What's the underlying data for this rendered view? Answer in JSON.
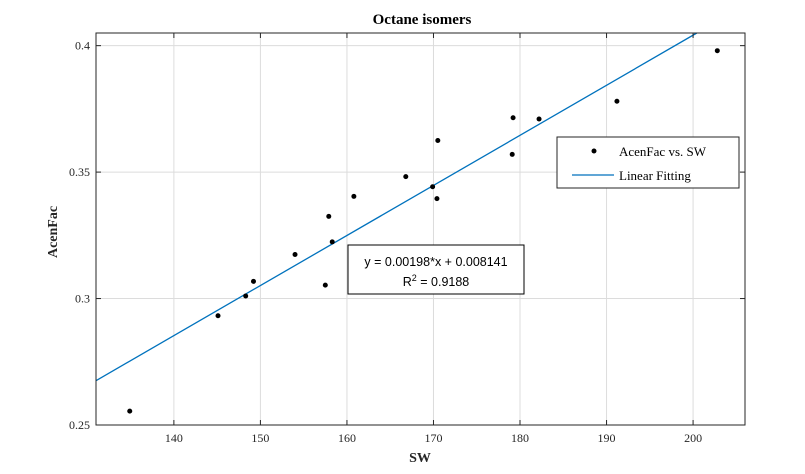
{
  "chart_data": {
    "type": "scatter",
    "title": "Octane isomers",
    "xlabel": "SW",
    "ylabel": "AcenFac",
    "xlim": [
      131,
      206
    ],
    "ylim": [
      0.25,
      0.405
    ],
    "x_ticks": [
      140,
      150,
      160,
      170,
      180,
      190,
      200
    ],
    "y_ticks": [
      0.25,
      0.3,
      0.35,
      0.4
    ],
    "x_tick_labels": [
      "140",
      "150",
      "160",
      "170",
      "180",
      "190",
      "200"
    ],
    "y_tick_labels": [
      "0.25",
      "0.3",
      "0.35",
      "0.4"
    ],
    "grid": true,
    "legend_position": "right",
    "series": [
      {
        "name": "AcenFac vs. SW",
        "kind": "points",
        "color": "#000000",
        "points": [
          {
            "x": 134.9,
            "y": 0.2555
          },
          {
            "x": 145.1,
            "y": 0.2932
          },
          {
            "x": 148.3,
            "y": 0.301
          },
          {
            "x": 149.2,
            "y": 0.3068
          },
          {
            "x": 154.0,
            "y": 0.3174
          },
          {
            "x": 157.5,
            "y": 0.3053
          },
          {
            "x": 157.9,
            "y": 0.3325
          },
          {
            "x": 158.3,
            "y": 0.3224
          },
          {
            "x": 160.8,
            "y": 0.3404
          },
          {
            "x": 166.8,
            "y": 0.3482
          },
          {
            "x": 169.9,
            "y": 0.3442
          },
          {
            "x": 170.4,
            "y": 0.3395
          },
          {
            "x": 170.5,
            "y": 0.3625
          },
          {
            "x": 179.1,
            "y": 0.357
          },
          {
            "x": 179.2,
            "y": 0.3715
          },
          {
            "x": 182.2,
            "y": 0.371
          },
          {
            "x": 191.2,
            "y": 0.378
          },
          {
            "x": 202.8,
            "y": 0.398
          }
        ]
      },
      {
        "name": "Linear Fitting",
        "kind": "line",
        "color": "#0072bd",
        "slope": 0.00198,
        "intercept": 0.008141
      }
    ],
    "annotation": {
      "equation": "y = 0.00198*x + 0.008141",
      "r2_prefix": "R",
      "r2_sup": "2",
      "r2_value": " = 0.9188"
    }
  }
}
